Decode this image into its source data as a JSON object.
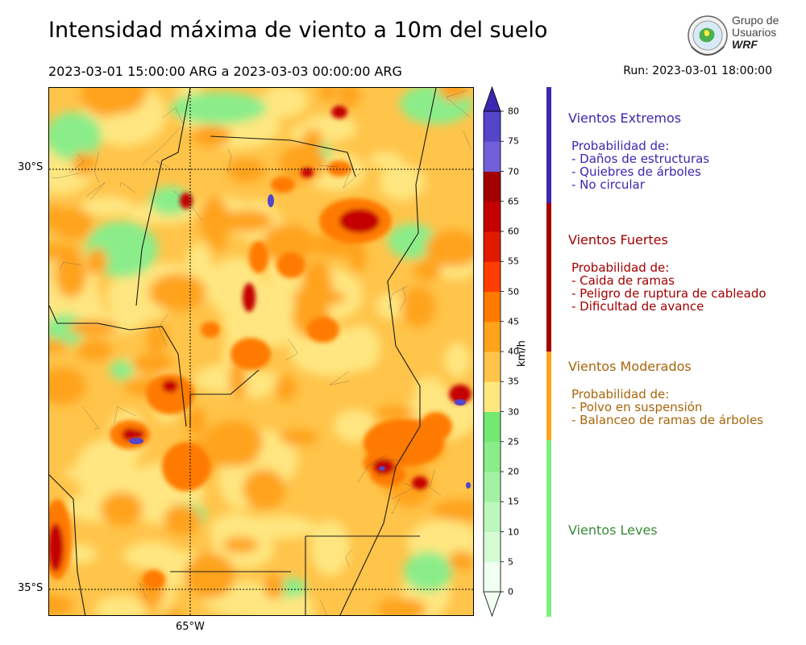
{
  "header": {
    "title": "Intensidad máxima de viento a 10m del suelo",
    "period": "2023-03-01 15:00:00 ARG  a  2023-03-03 00:00:00 ARG",
    "run": "Run: 2023-03-01 18:00:00"
  },
  "logo": {
    "line1": "Grupo de",
    "line2": "Usuarios",
    "line3": "WRF"
  },
  "map": {
    "lat_labels": [
      "30°S",
      "35°S"
    ],
    "lon_labels": [
      "65°W"
    ]
  },
  "colorbar": {
    "unit": "km/h",
    "ticks": [
      "0",
      "5",
      "10",
      "15",
      "20",
      "25",
      "30",
      "35",
      "40",
      "45",
      "50",
      "55",
      "60",
      "65",
      "70",
      "75",
      "80"
    ],
    "colors": [
      "#f0fff0",
      "#d6fcd6",
      "#bdf7bd",
      "#a3f2a3",
      "#8aed8a",
      "#73e873",
      "#ffe680",
      "#ffc44a",
      "#ffa31a",
      "#ff7a00",
      "#ff3d00",
      "#e01a00",
      "#c40000",
      "#a30000",
      "#7060d8",
      "#5545c8",
      "#3b28b0"
    ]
  },
  "categories": [
    {
      "name": "Vientos Extremos",
      "color": "#3b28b0",
      "details": [
        "Probabilidad de:",
        "- Daños de estructuras",
        "- Quiebres de árboles",
        "- No circular"
      ]
    },
    {
      "name": "Vientos Fuertes",
      "color": "#a30000",
      "details": [
        "Probabilidad de:",
        "- Caida de ramas",
        "- Peligro de ruptura de cableado",
        "- Dificultad de avance"
      ]
    },
    {
      "name": "Vientos Moderados",
      "color": "#a8650a",
      "details": [
        "Probabilidad de:",
        "- Polvo en suspensión",
        "- Balanceo de ramas de árboles"
      ]
    },
    {
      "name": "Vientos Leves",
      "color": "#3a8a3a",
      "details": []
    }
  ],
  "category_bar_colors": [
    "#3b28b0",
    "#a30000",
    "#ffa31a",
    "#7cf07c"
  ]
}
